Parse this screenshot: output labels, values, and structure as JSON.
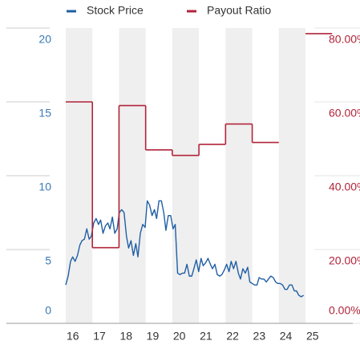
{
  "chart_data": {
    "type": "line",
    "legend": "top",
    "xlim": [
      2016,
      2025
    ],
    "xticks": [
      {
        "value": 2016,
        "label": "16"
      },
      {
        "value": 2017,
        "label": "17"
      },
      {
        "value": 2018,
        "label": "18"
      },
      {
        "value": 2019,
        "label": "19"
      },
      {
        "value": 2020,
        "label": "20"
      },
      {
        "value": 2021,
        "label": "21"
      },
      {
        "value": 2022,
        "label": "22"
      },
      {
        "value": 2023,
        "label": "23"
      },
      {
        "value": 2024,
        "label": "24"
      },
      {
        "value": 2025,
        "label": "25"
      }
    ],
    "ylim": [
      0,
      20
    ],
    "yticks": [
      0,
      5,
      10,
      15,
      20
    ],
    "y2lim": [
      0,
      80
    ],
    "y2ticks": [
      {
        "value": 0,
        "label": "0.00%"
      },
      {
        "value": 20,
        "label": "20.00%"
      },
      {
        "value": 40,
        "label": "40.00%"
      },
      {
        "value": 60,
        "label": "60.00%"
      },
      {
        "value": 80,
        "label": "80.00%"
      }
    ],
    "series": [
      {
        "name": "Stock Price",
        "color": "#1f5fa5",
        "x": [
          2016.0,
          2016.09,
          2016.18,
          2016.26,
          2016.35,
          2016.44,
          2016.53,
          2016.61,
          2016.7,
          2016.79,
          2016.88,
          2016.96,
          2017.05,
          2017.14,
          2017.23,
          2017.31,
          2017.4,
          2017.49,
          2017.58,
          2017.66,
          2017.75,
          2017.84,
          2017.93,
          2018.01,
          2018.1,
          2018.19,
          2018.28,
          2018.36,
          2018.45,
          2018.54,
          2018.63,
          2018.71,
          2018.8,
          2018.89,
          2018.98,
          2019.06,
          2019.15,
          2019.24,
          2019.33,
          2019.41,
          2019.5,
          2019.59,
          2019.68,
          2019.76,
          2019.85,
          2019.94,
          2020.03,
          2020.11,
          2020.2,
          2020.29,
          2020.38,
          2020.46,
          2020.55,
          2020.64,
          2020.73,
          2020.81,
          2020.9,
          2020.99,
          2021.08,
          2021.16,
          2021.25,
          2021.34,
          2021.43,
          2021.51,
          2021.6,
          2021.69,
          2021.78,
          2021.86,
          2021.95,
          2022.04,
          2022.13,
          2022.21,
          2022.3,
          2022.39,
          2022.48,
          2022.56,
          2022.65,
          2022.74,
          2022.83,
          2022.91,
          2023.0,
          2023.09,
          2023.18,
          2023.26,
          2023.35,
          2023.44,
          2023.53,
          2023.61,
          2023.7,
          2023.79,
          2023.88,
          2023.96,
          2024.05,
          2024.14,
          2024.23,
          2024.31,
          2024.4,
          2024.49,
          2024.58,
          2024.66,
          2024.75,
          2024.84,
          2024.93
        ],
        "values": [
          2.6,
          3.2,
          4.2,
          4.5,
          4.2,
          4.6,
          5.3,
          5.6,
          5.7,
          6.4,
          5.7,
          5.9,
          6.8,
          7.1,
          6.7,
          7.0,
          6.1,
          6.6,
          6.8,
          6.4,
          7.2,
          6.1,
          6.4,
          7.5,
          7.7,
          7.5,
          5.9,
          5.1,
          5.6,
          4.6,
          5.4,
          4.5,
          6.1,
          6.7,
          6.5,
          8.3,
          8.0,
          7.3,
          7.7,
          7.1,
          8.3,
          8.3,
          7.5,
          6.3,
          7.3,
          7.3,
          6.4,
          6.7,
          3.4,
          3.3,
          3.4,
          3.4,
          4.0,
          3.2,
          3.2,
          3.7,
          4.3,
          3.5,
          4.4,
          3.9,
          4.1,
          4.4,
          4.0,
          3.7,
          4.0,
          3.3,
          3.2,
          3.3,
          3.6,
          4.0,
          3.5,
          4.2,
          3.7,
          4.2,
          3.4,
          3.0,
          3.7,
          3.4,
          3.8,
          2.8,
          2.7,
          2.6,
          2.6,
          3.1,
          3.0,
          3.0,
          2.8,
          3.0,
          3.2,
          3.1,
          2.8,
          2.7,
          2.7,
          2.6,
          2.3,
          2.3,
          2.6,
          2.6,
          2.2,
          2.2,
          1.9,
          1.8,
          1.9
        ]
      },
      {
        "name": "Payout Ratio",
        "color": "#b1243a",
        "axis": "y2",
        "step": true,
        "x": [
          2016,
          2017,
          2018,
          2019,
          2020,
          2021,
          2022,
          2023,
          2024,
          2025
        ],
        "values": [
          60,
          20.5,
          59,
          47,
          45.5,
          48.5,
          54,
          49,
          null,
          78.5
        ]
      }
    ]
  }
}
